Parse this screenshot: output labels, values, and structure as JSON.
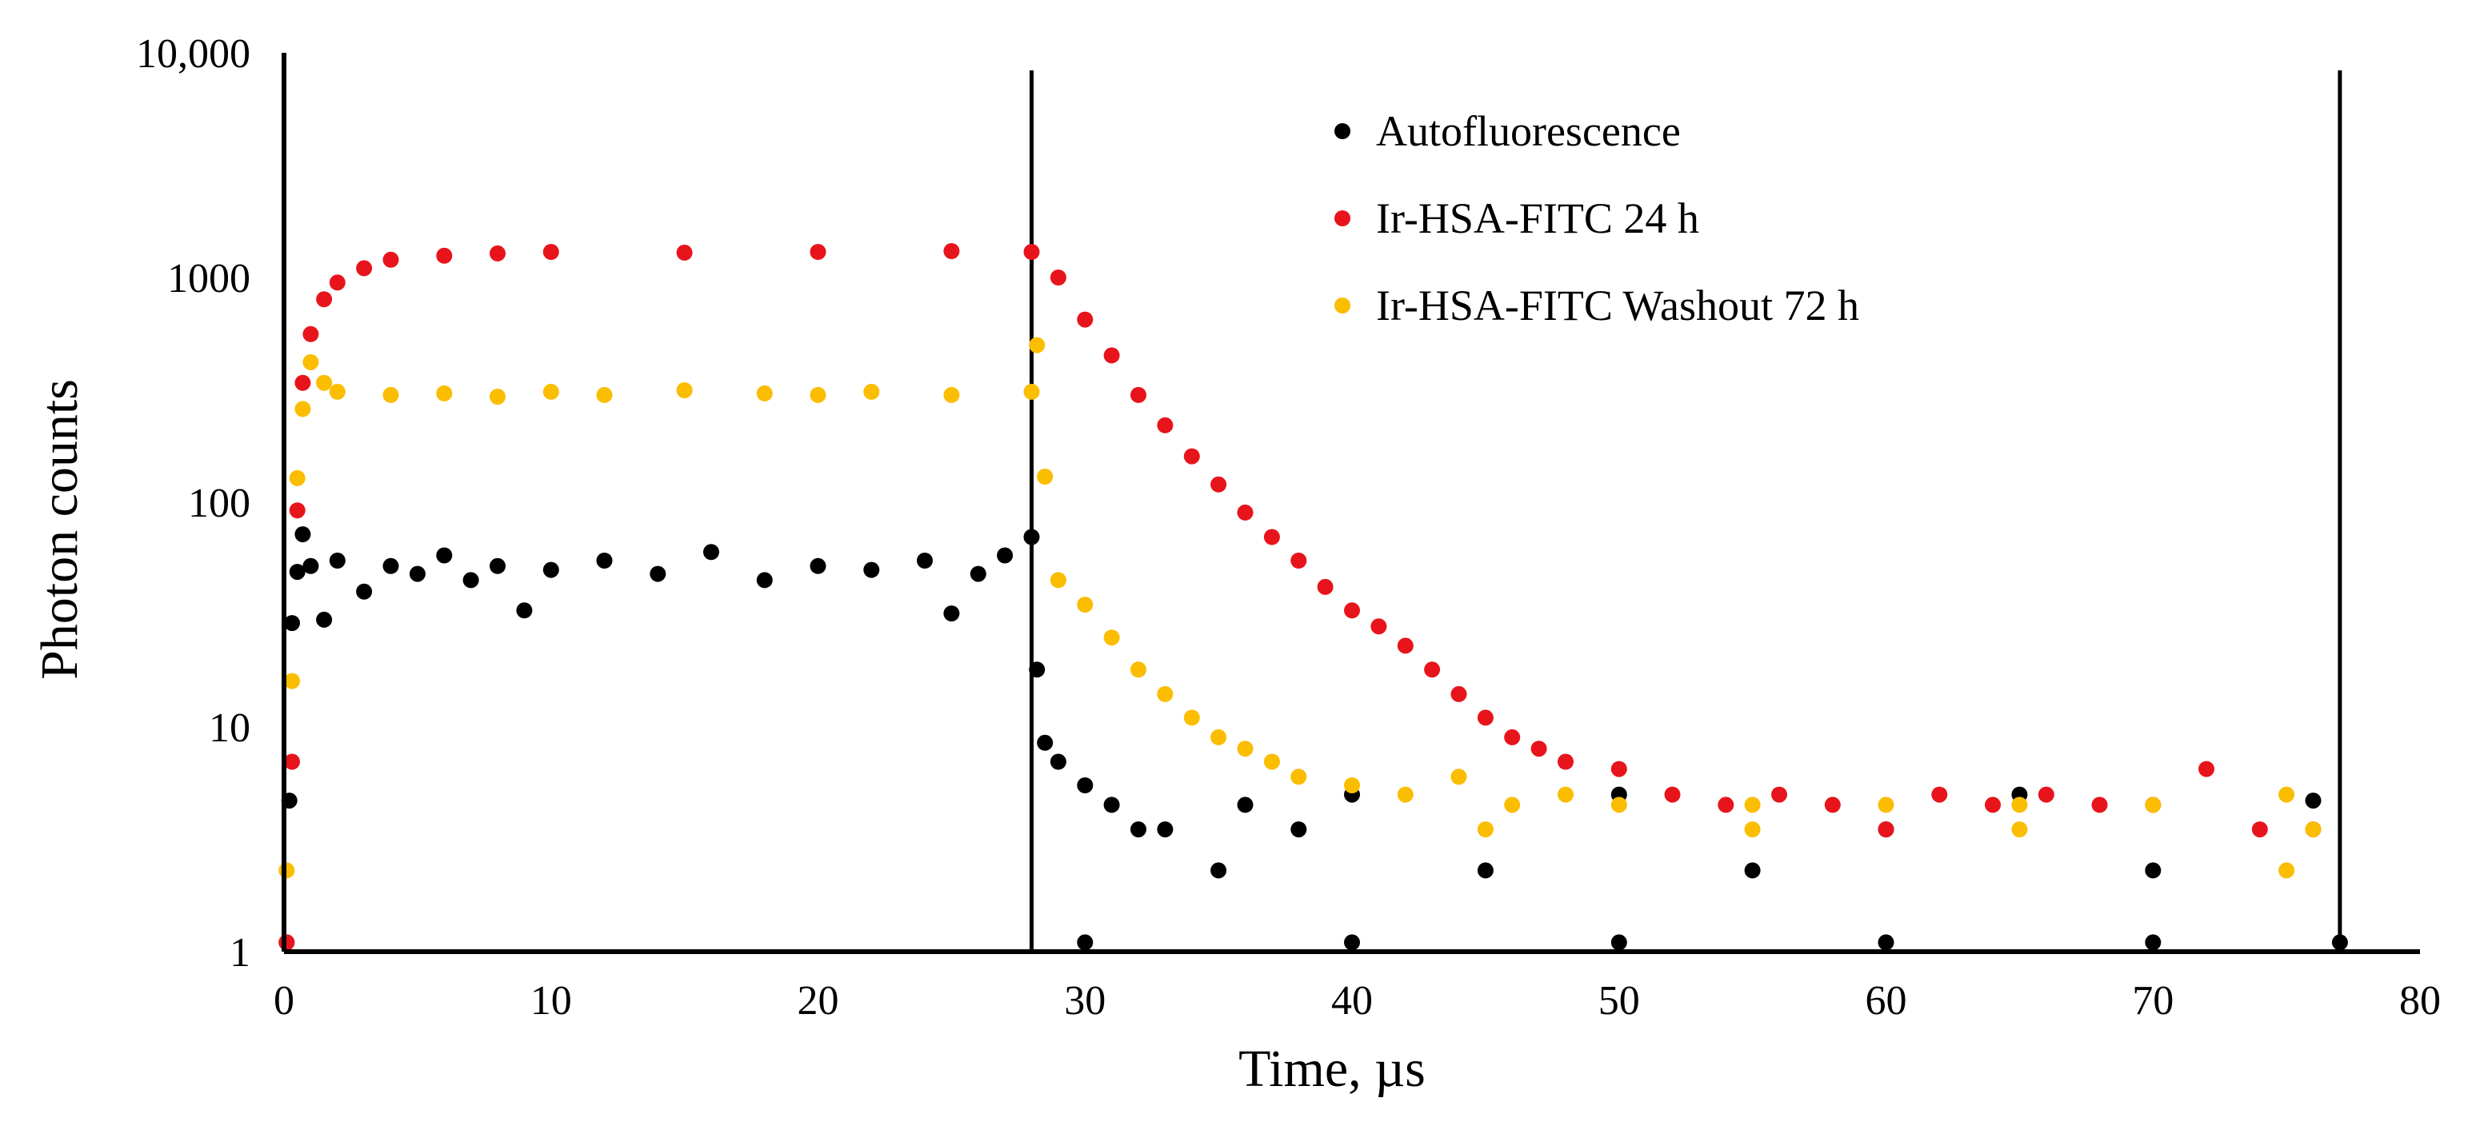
{
  "chart_data": {
    "type": "scatter",
    "title": "",
    "xlabel": "Time, µs",
    "ylabel": "Photon counts",
    "xlim": [
      0,
      80
    ],
    "ylim": [
      1,
      10000
    ],
    "yscale": "log",
    "x_ticks": [
      "0",
      "10",
      "20",
      "30",
      "40",
      "50",
      "60",
      "70",
      "80"
    ],
    "x_tick_values": [
      0,
      10,
      20,
      30,
      40,
      50,
      60,
      70,
      80
    ],
    "y_ticks": [
      "1",
      "10",
      "100",
      "1000",
      "10,000"
    ],
    "y_tick_values": [
      1,
      10,
      100,
      1000,
      10000
    ],
    "reference_lines_x": [
      28,
      77
    ],
    "legend_position": "top-center",
    "series": [
      {
        "name": "Autofluorescence",
        "color": "#000000",
        "points": [
          [
            0.1,
            1.1
          ],
          [
            0.2,
            4.7
          ],
          [
            0.3,
            29
          ],
          [
            0.5,
            49
          ],
          [
            0.7,
            72
          ],
          [
            1,
            52
          ],
          [
            1.5,
            30
          ],
          [
            2,
            55
          ],
          [
            3,
            40
          ],
          [
            4,
            52
          ],
          [
            5,
            48
          ],
          [
            6,
            58
          ],
          [
            7,
            45
          ],
          [
            8,
            52
          ],
          [
            9,
            33
          ],
          [
            10,
            50
          ],
          [
            12,
            55
          ],
          [
            14,
            48
          ],
          [
            16,
            60
          ],
          [
            18,
            45
          ],
          [
            20,
            52
          ],
          [
            22,
            50
          ],
          [
            24,
            55
          ],
          [
            25,
            32
          ],
          [
            26,
            48
          ],
          [
            27,
            58
          ],
          [
            28,
            70
          ],
          [
            28.2,
            18
          ],
          [
            28.5,
            8.5
          ],
          [
            29,
            7
          ],
          [
            30,
            5.5
          ],
          [
            31,
            4.5
          ],
          [
            32,
            3.5
          ],
          [
            33,
            3.5
          ],
          [
            35,
            2.3
          ],
          [
            36,
            4.5
          ],
          [
            38,
            3.5
          ],
          [
            40,
            5
          ],
          [
            45,
            2.3
          ],
          [
            50,
            5
          ],
          [
            55,
            2.3
          ],
          [
            60,
            3.5
          ],
          [
            65,
            5
          ],
          [
            70,
            2.3
          ],
          [
            76,
            4.7
          ],
          [
            30,
            1.1
          ],
          [
            40,
            1.1
          ],
          [
            50,
            1.1
          ],
          [
            60,
            1.1
          ],
          [
            70,
            1.1
          ],
          [
            77,
            1.1
          ]
        ]
      },
      {
        "name": "Ir-HSA-FITC 24 h",
        "color": "#e8141c",
        "points": [
          [
            0.1,
            1.1
          ],
          [
            0.3,
            7
          ],
          [
            0.5,
            92
          ],
          [
            0.7,
            340
          ],
          [
            1,
            560
          ],
          [
            1.5,
            800
          ],
          [
            2,
            950
          ],
          [
            3,
            1100
          ],
          [
            4,
            1200
          ],
          [
            6,
            1250
          ],
          [
            8,
            1280
          ],
          [
            10,
            1300
          ],
          [
            15,
            1290
          ],
          [
            20,
            1300
          ],
          [
            25,
            1310
          ],
          [
            28,
            1300
          ],
          [
            29,
            1000
          ],
          [
            30,
            650
          ],
          [
            31,
            450
          ],
          [
            32,
            300
          ],
          [
            33,
            220
          ],
          [
            34,
            160
          ],
          [
            35,
            120
          ],
          [
            36,
            90
          ],
          [
            37,
            70
          ],
          [
            38,
            55
          ],
          [
            39,
            42
          ],
          [
            40,
            33
          ],
          [
            41,
            28
          ],
          [
            42,
            23
          ],
          [
            43,
            18
          ],
          [
            44,
            14
          ],
          [
            45,
            11
          ],
          [
            46,
            9
          ],
          [
            47,
            8
          ],
          [
            48,
            7
          ],
          [
            50,
            6.5
          ],
          [
            52,
            5
          ],
          [
            54,
            4.5
          ],
          [
            56,
            5
          ],
          [
            58,
            4.5
          ],
          [
            60,
            3.5
          ],
          [
            62,
            5
          ],
          [
            64,
            4.5
          ],
          [
            66,
            5
          ],
          [
            68,
            4.5
          ],
          [
            70,
            4.5
          ],
          [
            72,
            6.5
          ],
          [
            74,
            3.5
          ],
          [
            76,
            3.5
          ]
        ]
      },
      {
        "name": "Ir-HSA-FITC Washout 72 h",
        "color": "#fbbd00",
        "points": [
          [
            0.1,
            2.3
          ],
          [
            0.3,
            16
          ],
          [
            0.5,
            128
          ],
          [
            0.7,
            260
          ],
          [
            1,
            420
          ],
          [
            1.5,
            340
          ],
          [
            2,
            310
          ],
          [
            4,
            300
          ],
          [
            6,
            305
          ],
          [
            8,
            295
          ],
          [
            10,
            310
          ],
          [
            12,
            300
          ],
          [
            15,
            315
          ],
          [
            18,
            305
          ],
          [
            20,
            300
          ],
          [
            22,
            310
          ],
          [
            25,
            300
          ],
          [
            28,
            310
          ],
          [
            28.2,
            500
          ],
          [
            28.5,
            130
          ],
          [
            29,
            45
          ],
          [
            30,
            35
          ],
          [
            31,
            25
          ],
          [
            32,
            18
          ],
          [
            33,
            14
          ],
          [
            34,
            11
          ],
          [
            35,
            9
          ],
          [
            36,
            8
          ],
          [
            37,
            7
          ],
          [
            38,
            6
          ],
          [
            40,
            5.5
          ],
          [
            42,
            5
          ],
          [
            44,
            6
          ],
          [
            46,
            4.5
          ],
          [
            48,
            5
          ],
          [
            50,
            4.5
          ],
          [
            55,
            4.5
          ],
          [
            60,
            4.5
          ],
          [
            65,
            4.5
          ],
          [
            70,
            4.5
          ],
          [
            75,
            5
          ],
          [
            76,
            3.5
          ],
          [
            45,
            3.5
          ],
          [
            55,
            3.5
          ],
          [
            65,
            3.5
          ],
          [
            75,
            2.3
          ]
        ]
      }
    ]
  }
}
